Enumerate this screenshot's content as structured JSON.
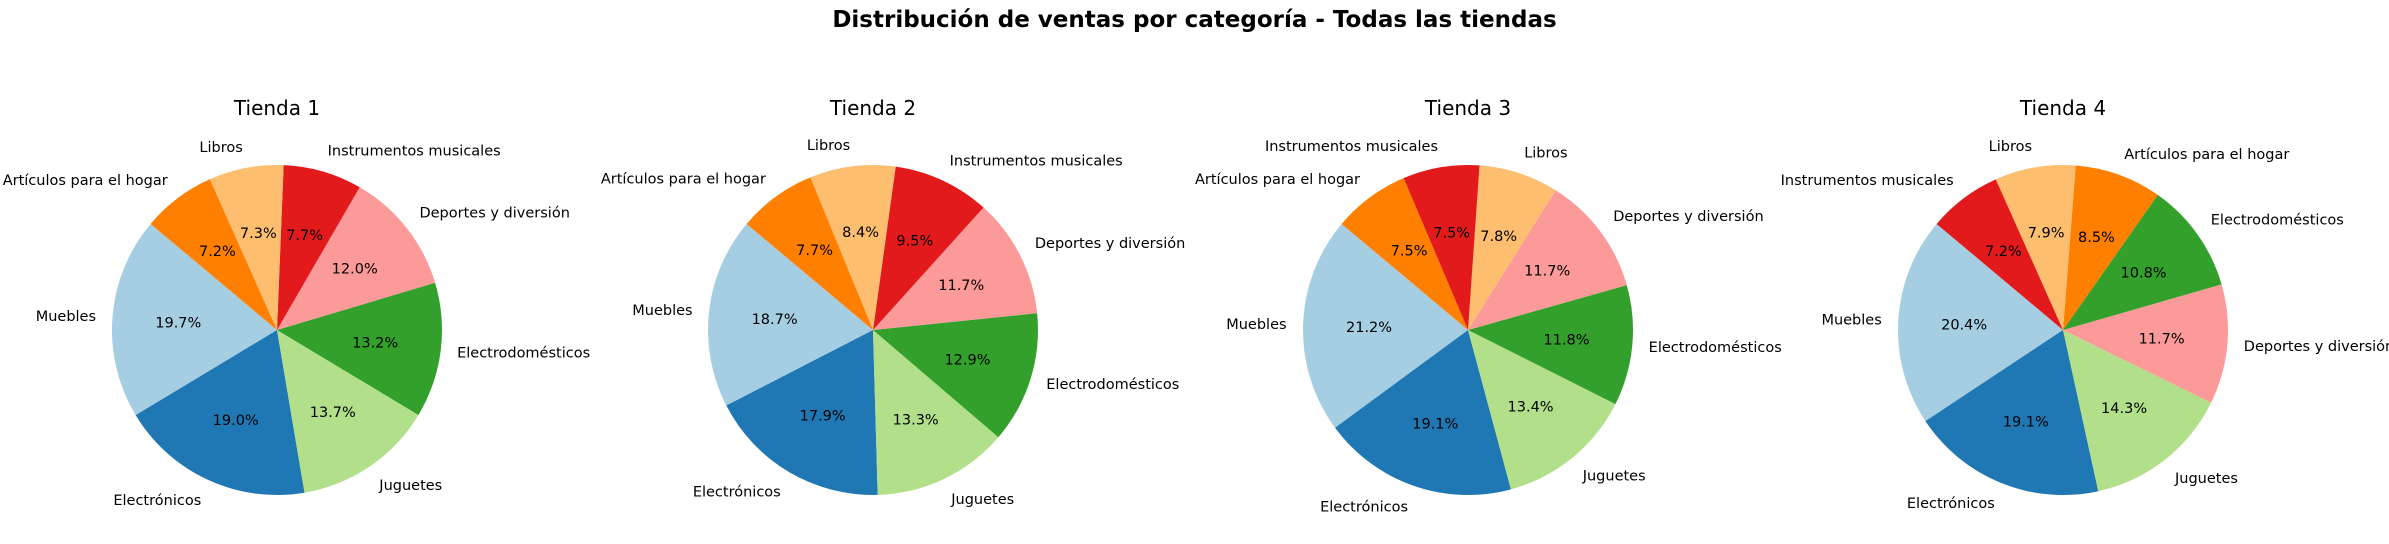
{
  "chart_data": {
    "type": "pie",
    "title": "Distribución de ventas por categoría - Todas las tiendas",
    "colors": {
      "Muebles": "#a6cee3",
      "Electrónicos": "#1f78b4",
      "Juguetes": "#b2df8a",
      "Electrodomésticos": "#33a02c",
      "Deportes y diversión": "#fb9a99",
      "Instrumentos musicales": "#e31a1c",
      "Libros": "#fdbf6f",
      "Artículos para el hogar": "#ff7f00"
    },
    "charts": [
      {
        "title": "Tienda 1",
        "slices": [
          {
            "label": "Muebles",
            "value": 19.7,
            "pct": "19.7%"
          },
          {
            "label": "Electrónicos",
            "value": 19.0,
            "pct": "19.0%"
          },
          {
            "label": "Juguetes",
            "value": 13.7,
            "pct": "13.7%"
          },
          {
            "label": "Electrodomésticos",
            "value": 13.2,
            "pct": "13.2%"
          },
          {
            "label": "Deportes y diversión",
            "value": 12.0,
            "pct": "12.0%"
          },
          {
            "label": "Instrumentos musicales",
            "value": 7.7,
            "pct": "7.7%"
          },
          {
            "label": "Libros",
            "value": 7.3,
            "pct": "7.3%"
          },
          {
            "label": "Artículos para el hogar",
            "value": 7.2,
            "pct": "7.2%"
          }
        ]
      },
      {
        "title": "Tienda 2",
        "slices": [
          {
            "label": "Muebles",
            "value": 18.7,
            "pct": "18.7%"
          },
          {
            "label": "Electrónicos",
            "value": 17.9,
            "pct": "17.9%"
          },
          {
            "label": "Juguetes",
            "value": 13.3,
            "pct": "13.3%"
          },
          {
            "label": "Electrodomésticos",
            "value": 12.9,
            "pct": "12.9%"
          },
          {
            "label": "Deportes y diversión",
            "value": 11.7,
            "pct": "11.7%"
          },
          {
            "label": "Instrumentos musicales",
            "value": 9.5,
            "pct": "9.5%"
          },
          {
            "label": "Libros",
            "value": 8.4,
            "pct": "8.4%"
          },
          {
            "label": "Artículos para el hogar",
            "value": 7.7,
            "pct": "7.7%"
          }
        ]
      },
      {
        "title": "Tienda 3",
        "slices": [
          {
            "label": "Muebles",
            "value": 21.2,
            "pct": "21.2%"
          },
          {
            "label": "Electrónicos",
            "value": 19.1,
            "pct": "19.1%"
          },
          {
            "label": "Juguetes",
            "value": 13.4,
            "pct": "13.4%"
          },
          {
            "label": "Electrodomésticos",
            "value": 11.8,
            "pct": "11.8%"
          },
          {
            "label": "Deportes y diversión",
            "value": 11.7,
            "pct": "11.7%"
          },
          {
            "label": "Libros",
            "value": 7.8,
            "pct": "7.8%"
          },
          {
            "label": "Instrumentos musicales",
            "value": 7.5,
            "pct": "7.5%"
          },
          {
            "label": "Artículos para el hogar",
            "value": 7.5,
            "pct": "7.5%"
          }
        ]
      },
      {
        "title": "Tienda 4",
        "slices": [
          {
            "label": "Muebles",
            "value": 20.4,
            "pct": "20.4%"
          },
          {
            "label": "Electrónicos",
            "value": 19.1,
            "pct": "19.1%"
          },
          {
            "label": "Juguetes",
            "value": 14.3,
            "pct": "14.3%"
          },
          {
            "label": "Deportes y diversión",
            "value": 11.7,
            "pct": "11.7%"
          },
          {
            "label": "Electrodomésticos",
            "value": 10.8,
            "pct": "10.8%"
          },
          {
            "label": "Artículos para el hogar",
            "value": 8.5,
            "pct": "8.5%"
          },
          {
            "label": "Libros",
            "value": 7.9,
            "pct": "7.9%"
          },
          {
            "label": "Instrumentos musicales",
            "value": 7.2,
            "pct": "7.2%"
          }
        ]
      }
    ]
  }
}
